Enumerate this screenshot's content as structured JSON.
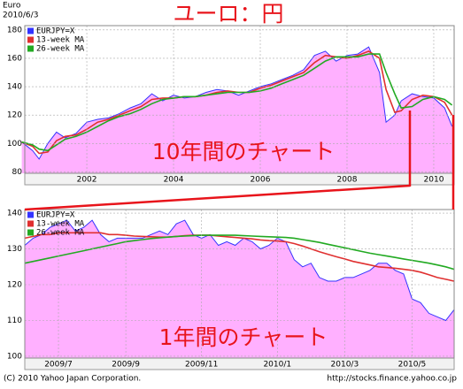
{
  "header": {
    "title": "Euro",
    "date": "2010/6/3",
    "heading": "ユーロ：円"
  },
  "chart_data": [
    {
      "type": "line",
      "annotation": "10年間のチャート",
      "x": [
        2000.5,
        2000.75,
        2000.9,
        2001.1,
        2001.3,
        2001.5,
        2001.75,
        2002,
        2002.25,
        2002.5,
        2002.75,
        2003,
        2003.25,
        2003.5,
        2003.75,
        2004,
        2004.25,
        2004.5,
        2004.75,
        2005,
        2005.25,
        2005.5,
        2005.75,
        2006,
        2006.25,
        2006.5,
        2006.75,
        2007,
        2007.25,
        2007.5,
        2007.75,
        2008,
        2008.25,
        2008.5,
        2008.75,
        2008.9,
        2009.1,
        2009.25,
        2009.5,
        2009.75,
        2010,
        2010.25,
        2010.42
      ],
      "series": [
        {
          "name": "EURJPY=X",
          "color": "#3333ff",
          "fill": "#ffb0ff",
          "values": [
            101,
            95,
            89,
            100,
            108,
            104,
            107,
            115,
            117,
            118,
            121,
            125,
            128,
            135,
            130,
            134,
            132,
            133,
            136,
            138,
            137,
            134,
            137,
            140,
            142,
            145,
            148,
            152,
            162,
            165,
            158,
            162,
            163,
            168,
            150,
            115,
            120,
            130,
            135,
            133,
            132,
            125,
            112
          ]
        },
        {
          "name": "13-week MA",
          "color": "#e03030",
          "values": [
            101,
            98,
            93,
            94,
            102,
            105,
            106,
            110,
            115,
            117,
            120,
            123,
            126,
            131,
            132,
            132,
            133,
            133,
            134,
            136,
            137,
            136,
            136,
            139,
            141,
            144,
            147,
            150,
            157,
            162,
            161,
            160,
            162,
            165,
            160,
            138,
            122,
            123,
            131,
            134,
            133,
            129,
            120
          ]
        },
        {
          "name": "26-week MA",
          "color": "#22aa22",
          "values": [
            101,
            99,
            96,
            95,
            99,
            103,
            105,
            108,
            112,
            116,
            119,
            121,
            124,
            128,
            131,
            132,
            133,
            133,
            134,
            135,
            136,
            136,
            136,
            137,
            139,
            142,
            145,
            148,
            153,
            158,
            161,
            161,
            161,
            163,
            163,
            150,
            135,
            125,
            126,
            131,
            133,
            131,
            127
          ]
        }
      ],
      "xlim": [
        2000.57,
        2010.47
      ],
      "xticks": [
        2002,
        2004,
        2006,
        2008,
        2010
      ],
      "ylim": [
        79,
        183
      ],
      "yticks": [
        80,
        100,
        120,
        140,
        160,
        180
      ],
      "grid": true
    },
    {
      "type": "line",
      "annotation": "1年間のチャート",
      "categories": [
        null,
        null,
        null,
        null,
        "2009/7",
        null,
        null,
        null,
        null,
        null,
        null,
        null,
        "2009/9",
        null,
        null,
        null,
        null,
        null,
        null,
        null,
        null,
        "2009/11",
        null,
        null,
        null,
        null,
        null,
        null,
        null,
        null,
        "2010/1",
        null,
        null,
        null,
        null,
        null,
        null,
        null,
        "2010/3",
        null,
        null,
        null,
        null,
        null,
        null,
        null,
        "2010/5",
        null,
        null,
        null,
        null,
        null
      ],
      "series": [
        {
          "name": "EURJPY=X",
          "color": "#3333ff",
          "fill": "#ffb0ff",
          "values": [
            131,
            133,
            134,
            136,
            137,
            138,
            135,
            136,
            138,
            134,
            132,
            133,
            133,
            133,
            133,
            134,
            135,
            134,
            137,
            138,
            134,
            133,
            134,
            131,
            132,
            131,
            133,
            132,
            130,
            131,
            133,
            132,
            127,
            125,
            126,
            122,
            121,
            121,
            122,
            122,
            123,
            124,
            126,
            126,
            124,
            123,
            116,
            115,
            112,
            111,
            110,
            113
          ]
        },
        {
          "name": "13-week MA",
          "color": "#e03030",
          "values": [
            133,
            133.5,
            134,
            134,
            134.5,
            134.5,
            134.5,
            134.5,
            134.5,
            134.5,
            134,
            134,
            133.8,
            133.6,
            133.5,
            133.4,
            133.3,
            133.3,
            133.5,
            133.7,
            133.8,
            133.8,
            133.8,
            133.6,
            133.4,
            133.2,
            133,
            132.8,
            132.5,
            132.3,
            132.2,
            132,
            131.5,
            130.8,
            130,
            129.2,
            128.5,
            127.8,
            127.2,
            126.5,
            126,
            125.5,
            125,
            124.8,
            124.6,
            124.3,
            124,
            123.5,
            122.8,
            122,
            121.5,
            121
          ]
        },
        {
          "name": "26-week MA",
          "color": "#22aa22",
          "values": [
            126,
            126.5,
            127,
            127.5,
            128,
            128.5,
            129,
            129.5,
            130,
            130.5,
            131,
            131.5,
            132,
            132.3,
            132.6,
            132.9,
            133.1,
            133.3,
            133.5,
            133.6,
            133.7,
            133.8,
            133.8,
            133.8,
            133.8,
            133.8,
            133.7,
            133.6,
            133.5,
            133.4,
            133.3,
            133.2,
            133,
            132.6,
            132.2,
            131.8,
            131.3,
            130.8,
            130.3,
            129.8,
            129.3,
            128.8,
            128.4,
            128,
            127.6,
            127.2,
            126.8,
            126.4,
            126,
            125.5,
            125,
            124.3
          ]
        }
      ],
      "ylim": [
        99.5,
        141
      ],
      "yticks": [
        100,
        110,
        120,
        130,
        140
      ],
      "grid": true
    }
  ],
  "footer": {
    "copyright": "(C) 2010 Yahoo Japan Corporation.",
    "url": "http://stocks.finance.yahoo.co.jp"
  }
}
